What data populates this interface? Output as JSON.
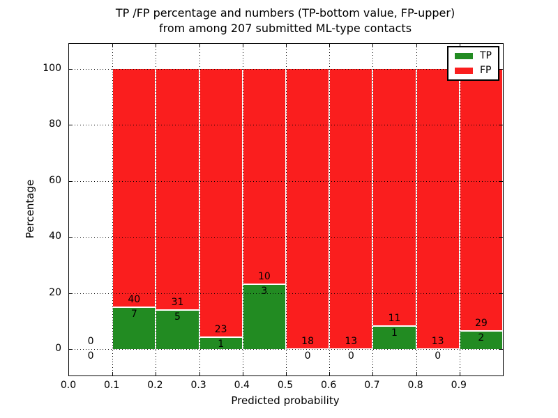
{
  "title": {
    "line1": "TP /FP percentage and numbers (TP-bottom value, FP-upper)",
    "line2": "from among 207 submitted ML-type contacts"
  },
  "axes": {
    "xlabel": "Predicted probability",
    "ylabel": "Percentage"
  },
  "legend": [
    {
      "label": "TP",
      "color": "#228B22"
    },
    {
      "label": "FP",
      "color": "#FA1E1E"
    }
  ],
  "chart_data": {
    "type": "bar",
    "stacked": true,
    "title": "TP /FP percentage and numbers (TP-bottom value, FP-upper) from among 207 submitted ML-type contacts",
    "xlabel": "Predicted probability",
    "ylabel": "Percentage",
    "total_contacts": 207,
    "bin_width": 0.1,
    "bin_starts": [
      0.0,
      0.1,
      0.2,
      0.3,
      0.4,
      0.5,
      0.6,
      0.7,
      0.8,
      0.9
    ],
    "series": [
      {
        "name": "TP",
        "color": "#228B22",
        "counts": [
          0,
          7,
          5,
          1,
          3,
          0,
          0,
          1,
          0,
          2
        ],
        "percent": [
          0,
          14.89,
          13.89,
          4.17,
          23.08,
          0,
          0,
          8.33,
          0,
          6.45
        ]
      },
      {
        "name": "FP",
        "color": "#FA1E1E",
        "counts": [
          0,
          40,
          31,
          23,
          10,
          18,
          13,
          11,
          13,
          29
        ],
        "percent": [
          0,
          85.11,
          86.11,
          95.83,
          76.92,
          100,
          100,
          91.67,
          100,
          93.55
        ]
      }
    ],
    "xticks": [
      0.0,
      0.1,
      0.2,
      0.3,
      0.4,
      0.5,
      0.6,
      0.7,
      0.8,
      0.9
    ],
    "xtick_labels": [
      "0.0",
      "0.1",
      "0.2",
      "0.3",
      "0.4",
      "0.5",
      "0.6",
      "0.7",
      "0.8",
      "0.9"
    ],
    "yticks": [
      0,
      20,
      40,
      60,
      80,
      100
    ],
    "ytick_labels": [
      "0",
      "20",
      "40",
      "60",
      "80",
      "100"
    ],
    "xlim": [
      0.0,
      1.0
    ],
    "ylim": [
      -9.5,
      109.0
    ],
    "grid": "dotted, drawn above bars",
    "legend_position": "upper right",
    "bar_edge_color": "#ffffff"
  }
}
